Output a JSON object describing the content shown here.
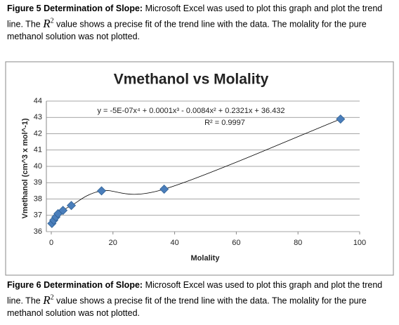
{
  "caption_top": {
    "label": "Figure 5 Determination of Slope:",
    "text_before": "Microsoft Excel was used to plot this graph and plot the trend line.  The",
    "symbol": "R",
    "superscript": "2",
    "text_after": "value shows a precise fit of the trend line with the data.  The molality for the pure methanol solution was not plotted."
  },
  "chart_data": {
    "type": "scatter",
    "title": "Vmethanol vs Molality",
    "x_label": "Molality",
    "y_label": "Vmethanol (cm^3 x mol^-1)",
    "equation": "y = -5E-07x⁴ + 0.0001x³ - 0.0084x² + 0.2321x + 36.432",
    "r_squared": "R² = 0.9997",
    "x": [
      0.2,
      0.8,
      1.5,
      2.2,
      3.8,
      6.5,
      16.3,
      36.6,
      93.8
    ],
    "series": [
      {
        "name": "Vmethanol",
        "color": "#4a7ebb",
        "values": [
          36.5,
          36.7,
          36.9,
          37.1,
          37.3,
          37.6,
          38.5,
          38.6,
          42.9
        ]
      }
    ],
    "xlim": [
      0,
      100
    ],
    "xticks": [
      0,
      20,
      40,
      60,
      80,
      100
    ],
    "ylim": [
      36,
      44
    ],
    "yticks": [
      36,
      37,
      38,
      39,
      40,
      41,
      42,
      43,
      44
    ],
    "grid": true,
    "trendline": true
  },
  "caption_bottom": {
    "label": "Figure 6 Determination of Slope:",
    "text_before": "Microsoft Excel was used to plot this graph and plot the trend line.  The",
    "symbol": "R",
    "superscript": "2",
    "text_after": "value shows a precise fit of the trend line with the data.  The molality for the pure methanol solution was not plotted."
  }
}
